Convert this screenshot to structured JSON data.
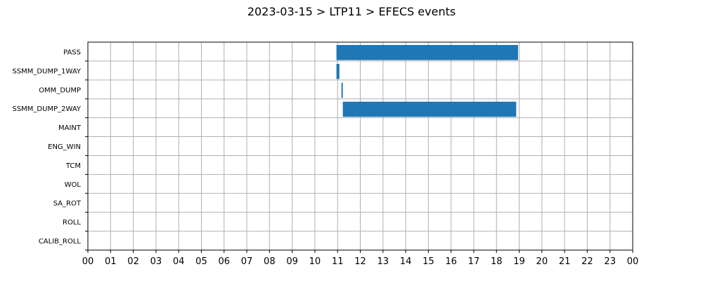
{
  "chart_data": {
    "type": "bar",
    "orientation": "horizontal-timeline",
    "title": "2023-03-15 > LTP11 > EFECS events",
    "xlabel": "",
    "ylabel": "",
    "xlim": [
      0,
      24
    ],
    "x_tick_labels": [
      "00",
      "01",
      "02",
      "03",
      "04",
      "05",
      "06",
      "07",
      "08",
      "09",
      "10",
      "11",
      "12",
      "13",
      "14",
      "15",
      "16",
      "17",
      "18",
      "19",
      "20",
      "21",
      "22",
      "23",
      "00"
    ],
    "categories": [
      "PASS",
      "SSMM_DUMP_1WAY",
      "OMM_DUMP",
      "SSMM_DUMP_2WAY",
      "MAINT",
      "ENG_WIN",
      "TCM",
      "WOL",
      "SA_ROT",
      "ROLL",
      "CALIB_ROLL"
    ],
    "grid": true,
    "bar_color": "#1f77b4",
    "series": [
      {
        "events": [
          {
            "category": "PASS",
            "start": 10.95,
            "end": 18.95
          },
          {
            "category": "SSMM_DUMP_1WAY",
            "start": 10.95,
            "end": 11.08
          },
          {
            "category": "OMM_DUMP",
            "start": 11.17,
            "end": 11.23
          },
          {
            "category": "SSMM_DUMP_2WAY",
            "start": 11.23,
            "end": 18.87
          }
        ]
      }
    ]
  }
}
